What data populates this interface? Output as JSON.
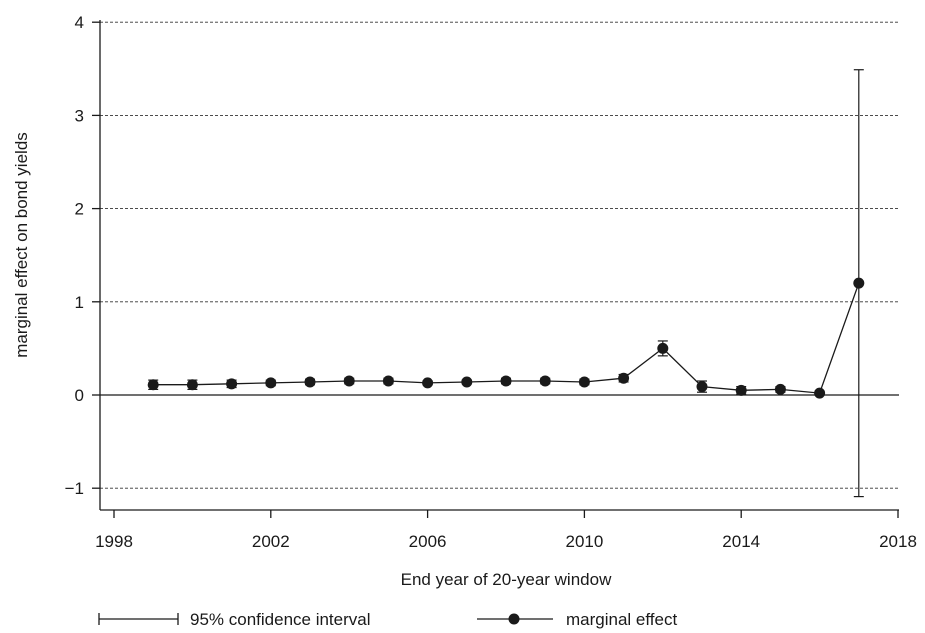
{
  "chart_data": {
    "type": "line",
    "xlabel": "End year of 20-year window",
    "ylabel": "marginal effect on bond yields",
    "xlim": [
      1998,
      2018
    ],
    "ylim": [
      -1.25,
      4.2
    ],
    "x_ticks": [
      1998,
      2002,
      2006,
      2010,
      2014,
      2018
    ],
    "x_tick_labels": [
      "1998",
      "2002",
      "2006",
      "2010",
      "2014",
      "2018"
    ],
    "y_ticks": [
      -1,
      0,
      1,
      2,
      3,
      4
    ],
    "y_tick_labels": [
      "−1",
      "0",
      "1",
      "2",
      "3",
      "4"
    ],
    "grid": "horizontal dashed",
    "legend_position": "bottom",
    "legend": {
      "ci_label": "95% confidence interval",
      "effect_label": "marginal effect"
    },
    "series": [
      {
        "name": "marginal effect",
        "x": [
          1999,
          2000,
          2001,
          2002,
          2003,
          2004,
          2005,
          2006,
          2007,
          2008,
          2009,
          2010,
          2011,
          2012,
          2013,
          2014,
          2015,
          2016,
          2017
        ],
        "values": [
          0.11,
          0.11,
          0.12,
          0.13,
          0.14,
          0.15,
          0.15,
          0.13,
          0.14,
          0.15,
          0.15,
          0.14,
          0.18,
          0.5,
          0.09,
          0.05,
          0.06,
          0.02,
          1.2
        ],
        "ci_lower": [
          0.06,
          0.06,
          0.08,
          0.1,
          0.11,
          0.12,
          0.12,
          0.11,
          0.12,
          0.12,
          0.12,
          0.11,
          0.14,
          0.42,
          0.03,
          0.01,
          0.03,
          0.0,
          -1.09
        ],
        "ci_upper": [
          0.16,
          0.16,
          0.16,
          0.16,
          0.17,
          0.18,
          0.18,
          0.15,
          0.16,
          0.18,
          0.18,
          0.17,
          0.22,
          0.58,
          0.15,
          0.09,
          0.09,
          0.04,
          3.49
        ]
      }
    ]
  }
}
